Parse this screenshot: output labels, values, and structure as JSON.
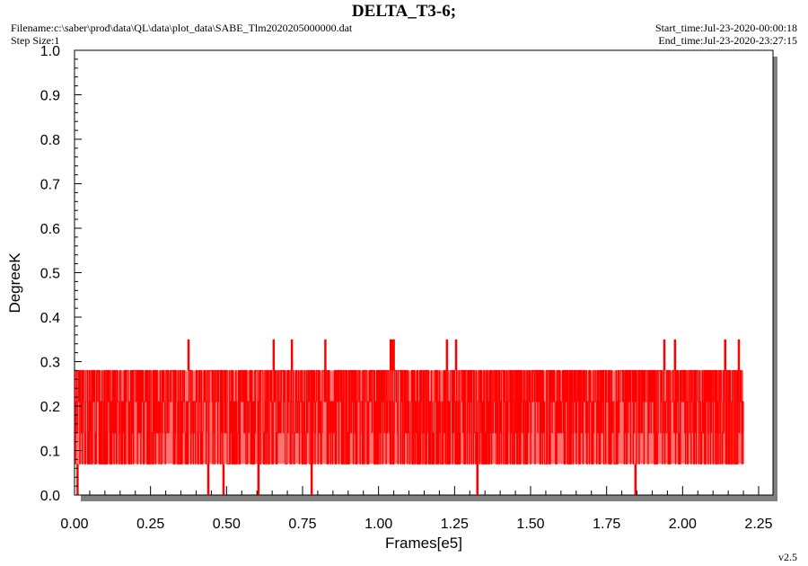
{
  "header": {
    "title": "DELTA_T3-6;",
    "filename": "Filename:c:\\saber\\prod\\data\\QL\\data\\plot_data\\SABE_Tlm2020205000000.dat",
    "step_size": "Step Size:1",
    "start_time": "Start_time:Jul-23-2020-00:00:18",
    "end_time": "End_time:Jul-23-2020-23:27:15",
    "version": "v2.5"
  },
  "chart_data": {
    "type": "line",
    "title": "DELTA_T3-6;",
    "xlabel": "Frames[e5]",
    "ylabel": "DegreeK",
    "xlim": [
      0,
      2.25
    ],
    "ylim": [
      0,
      1.0
    ],
    "x_ticks": [
      "0.00",
      "0.25",
      "0.50",
      "0.75",
      "1.00",
      "1.25",
      "1.50",
      "1.75",
      "2.00",
      "2.25"
    ],
    "y_ticks": [
      "0.0",
      "0.1",
      "0.2",
      "0.3",
      "0.4",
      "0.5",
      "0.6",
      "0.7",
      "0.8",
      "0.9",
      "1.0"
    ],
    "grid": false,
    "series": [
      {
        "color": "#ff0000",
        "x_range": [
          0.0,
          2.2
        ],
        "typical_min": 0.07,
        "typical_max": 0.28,
        "levels": [
          0.0,
          0.07,
          0.14,
          0.21,
          0.28,
          0.35
        ],
        "spikes_high": [
          {
            "x": 0.375,
            "y": 0.35
          },
          {
            "x": 0.655,
            "y": 0.35
          },
          {
            "x": 0.715,
            "y": 0.35
          },
          {
            "x": 0.825,
            "y": 0.35
          },
          {
            "x": 1.04,
            "y": 0.35
          },
          {
            "x": 1.045,
            "y": 0.35
          },
          {
            "x": 1.05,
            "y": 0.35
          },
          {
            "x": 1.225,
            "y": 0.35
          },
          {
            "x": 1.255,
            "y": 0.35
          },
          {
            "x": 1.94,
            "y": 0.35
          },
          {
            "x": 1.975,
            "y": 0.35
          },
          {
            "x": 2.14,
            "y": 0.35
          },
          {
            "x": 2.185,
            "y": 0.35
          }
        ],
        "spikes_low": [
          {
            "x": 0.01,
            "y": 0.0
          },
          {
            "x": 0.44,
            "y": 0.0
          },
          {
            "x": 0.49,
            "y": 0.0
          },
          {
            "x": 0.605,
            "y": 0.0
          },
          {
            "x": 0.78,
            "y": 0.0
          },
          {
            "x": 1.325,
            "y": 0.0
          },
          {
            "x": 1.845,
            "y": 0.0
          }
        ]
      }
    ]
  }
}
